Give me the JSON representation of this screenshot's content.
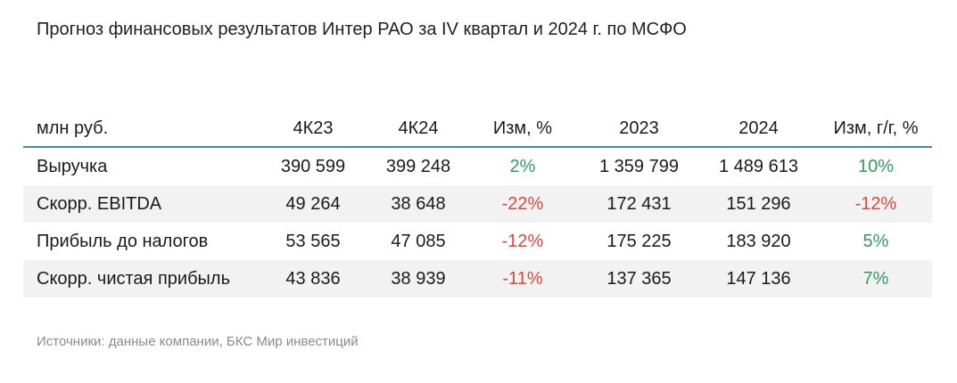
{
  "title": "Прогноз финансовых результатов Интер РАО за IV квартал и 2024 г. по МСФО",
  "table": {
    "headers": [
      "млн руб.",
      "4К23",
      "4К24",
      "Изм, %",
      "2023",
      "2024",
      "Изм, г/г, %"
    ],
    "rows": [
      {
        "label": "Выручка",
        "q23": "390 599",
        "q24": "399 248",
        "chg_q": "2%",
        "y23": "1 359 799",
        "y24": "1 489 613",
        "chg_y": "10%"
      },
      {
        "label": "Скорр. EBITDA",
        "q23": "49 264",
        "q24": "38 648",
        "chg_q": "-22%",
        "y23": "172 431",
        "y24": "151 296",
        "chg_y": "-12%"
      },
      {
        "label": "Прибыль до налогов",
        "q23": "53 565",
        "q24": "47 085",
        "chg_q": "-12%",
        "y23": "175 225",
        "y24": "183 920",
        "chg_y": "5%"
      },
      {
        "label": "Скорр. чистая прибыль",
        "q23": "43 836",
        "q24": "38 939",
        "chg_q": "-11%",
        "y23": "137 365",
        "y24": "147 136",
        "chg_y": "7%"
      }
    ]
  },
  "colors": {
    "positive": "#2e9c62",
    "negative": "#e0453a",
    "header_rule": "#4a7fc1",
    "row_shade": "#f2f2f2"
  },
  "source": "Источники: данные компании, БКС Мир инвестиций"
}
